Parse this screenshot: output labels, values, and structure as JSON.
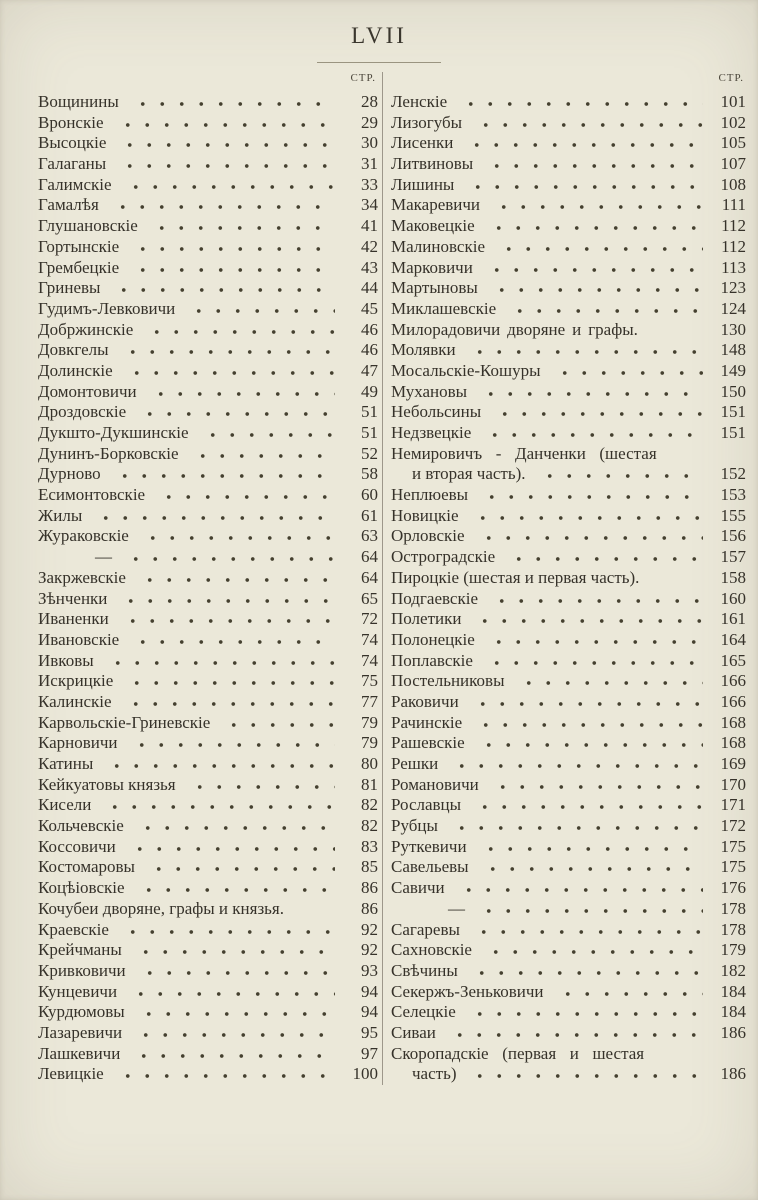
{
  "page": {
    "title": "LVII"
  },
  "columns": [
    {
      "header": "СТР.",
      "entries": [
        {
          "name": "Вощинины",
          "page": "28"
        },
        {
          "name": "Вронскіе",
          "page": "29"
        },
        {
          "name": "Высоцкіе",
          "page": "30"
        },
        {
          "name": "Галаганы",
          "page": "31"
        },
        {
          "name": "Галимскіе",
          "page": "33"
        },
        {
          "name": "Гамалѣя",
          "page": "34"
        },
        {
          "name": "Глушановскіе",
          "page": "41"
        },
        {
          "name": "Гортынскіе",
          "page": "42"
        },
        {
          "name": "Грембецкіе",
          "page": "43"
        },
        {
          "name": "Гриневы",
          "page": "44"
        },
        {
          "name": "Гудимъ-Левковичи",
          "page": "45"
        },
        {
          "name": "Добржинскіе",
          "page": "46"
        },
        {
          "name": "Довкгелы",
          "page": "46"
        },
        {
          "name": "Долинскіе",
          "page": "47"
        },
        {
          "name": "Домонтовичи",
          "page": "49"
        },
        {
          "name": "Дроздовскіе",
          "page": "51"
        },
        {
          "name": "Дукшто-Дукшинскіе",
          "page": "51"
        },
        {
          "name": "Дунинъ-Борковскіе",
          "page": "52"
        },
        {
          "name": "Дурново",
          "page": "58"
        },
        {
          "name": "Есимонтовскіе",
          "page": "60"
        },
        {
          "name": "Жилы",
          "page": "61"
        },
        {
          "name": "Жураковскіе",
          "page": "63"
        },
        {
          "name": "—",
          "page": "64",
          "dash": true
        },
        {
          "name": "Закржевскіе",
          "page": "64"
        },
        {
          "name": "Зѣнченки",
          "page": "65"
        },
        {
          "name": "Иваненки",
          "page": "72"
        },
        {
          "name": "Ивановскіе",
          "page": "74"
        },
        {
          "name": "Ивковы",
          "page": "74"
        },
        {
          "name": "Искрицкіе",
          "page": "75"
        },
        {
          "name": "Калинскіе",
          "page": "77"
        },
        {
          "name": "Карвольскіе-Гриневскіе",
          "page": "79"
        },
        {
          "name": "Карновичи",
          "page": "79"
        },
        {
          "name": "Катины",
          "page": "80"
        },
        {
          "name": "Кейкуатовы князья",
          "page": "81"
        },
        {
          "name": "Кисели",
          "page": "82"
        },
        {
          "name": "Кольчевскіе",
          "page": "82"
        },
        {
          "name": "Коссовичи",
          "page": "83"
        },
        {
          "name": "Костомаровы",
          "page": "85"
        },
        {
          "name": "Коцѣіовскіе",
          "page": "86"
        },
        {
          "name": "Кочубеи дворяне, графы и князья.",
          "page": "86",
          "dots": false
        },
        {
          "name": "Краевскіе",
          "page": "92"
        },
        {
          "name": "Крейчманы",
          "page": "92"
        },
        {
          "name": "Кривковичи",
          "page": "93"
        },
        {
          "name": "Кунцевичи",
          "page": "94"
        },
        {
          "name": "Курдюмовы",
          "page": "94"
        },
        {
          "name": "Лазаревичи",
          "page": "95"
        },
        {
          "name": "Лашкевичи",
          "page": "97"
        },
        {
          "name": "Левицкіе",
          "page": "100"
        }
      ]
    },
    {
      "header": "СТР.",
      "entries": [
        {
          "name": "Ленскіе",
          "page": "101"
        },
        {
          "name": "Лизогубы",
          "page": "102"
        },
        {
          "name": "Лисенки",
          "page": "105"
        },
        {
          "name": "Литвиновы",
          "page": "107"
        },
        {
          "name": "Лишины",
          "page": "108"
        },
        {
          "name": "Макаревичи",
          "page": "111"
        },
        {
          "name": "Маковецкіе",
          "page": "112"
        },
        {
          "name": "Малиновскіе",
          "page": "112"
        },
        {
          "name": "Марковичи",
          "page": "113"
        },
        {
          "name": "Мартыновы",
          "page": "123"
        },
        {
          "name": "Миклашевскіе",
          "page": "124"
        },
        {
          "name": "Милорадовичи дворяне и графы.",
          "page": "130",
          "dots": false,
          "spread_sm": true
        },
        {
          "name": "Молявки",
          "page": "148"
        },
        {
          "name": "Мосальскіе-Кошуры",
          "page": "149"
        },
        {
          "name": "Мухановы",
          "page": "150"
        },
        {
          "name": "Небольсины",
          "page": "151"
        },
        {
          "name": "Недзвецкіе",
          "page": "151"
        },
        {
          "name": "Немировичъ - Данченки (шестая",
          "name2": "и вторая часть).",
          "page": "152",
          "spread": true
        },
        {
          "name": "Неплюевы",
          "page": "153"
        },
        {
          "name": "Новицкіе",
          "page": "155"
        },
        {
          "name": "Орловскіе",
          "page": "156"
        },
        {
          "name": "Остроградскіе",
          "page": "157"
        },
        {
          "name": "Пироцкіе (шестая и первая часть).",
          "page": "158",
          "dots": false
        },
        {
          "name": "Подгаевскіе",
          "page": "160"
        },
        {
          "name": "Полетики",
          "page": "161"
        },
        {
          "name": "Полонецкіе",
          "page": "164"
        },
        {
          "name": "Поплавскіе",
          "page": "165"
        },
        {
          "name": "Постельниковы",
          "page": "166"
        },
        {
          "name": "Раковичи",
          "page": "166"
        },
        {
          "name": "Рачинскіе",
          "page": "168"
        },
        {
          "name": "Рашевскіе",
          "page": "168"
        },
        {
          "name": "Решки",
          "page": "169"
        },
        {
          "name": "Романовичи",
          "page": "170"
        },
        {
          "name": "Рославцы",
          "page": "171"
        },
        {
          "name": "Рубцы",
          "page": "172"
        },
        {
          "name": "Руткевичи",
          "page": "175"
        },
        {
          "name": "Савельевы",
          "page": "175"
        },
        {
          "name": "Савичи",
          "page": "176"
        },
        {
          "name": "—",
          "page": "178",
          "dash": true
        },
        {
          "name": "Сагаревы",
          "page": "178"
        },
        {
          "name": "Сахновскіе",
          "page": "179"
        },
        {
          "name": "Свѣчины",
          "page": "182"
        },
        {
          "name": "Секержъ-Зеньковичи",
          "page": "184"
        },
        {
          "name": "Селецкіе",
          "page": "184"
        },
        {
          "name": "Сиваи",
          "page": "186"
        },
        {
          "name": "Скоропадскіе (первая и шестая",
          "name2": "часть)",
          "page": "186",
          "spread": true
        }
      ]
    }
  ]
}
